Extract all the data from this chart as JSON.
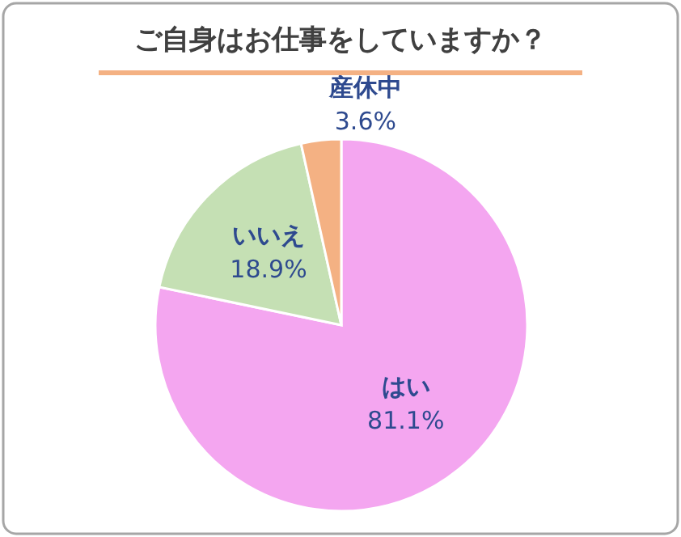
{
  "chart_data": {
    "type": "pie",
    "title": "ご自身はお仕事をしていますか？",
    "categories": [
      "はい",
      "いいえ",
      "産休中"
    ],
    "values": [
      81.1,
      18.9,
      3.6
    ],
    "value_labels": [
      "81.1%",
      "18.9%",
      "3.6%"
    ],
    "colors": [
      "#f4a6f0",
      "#c5e0b4",
      "#f4b183"
    ],
    "legend": false
  }
}
